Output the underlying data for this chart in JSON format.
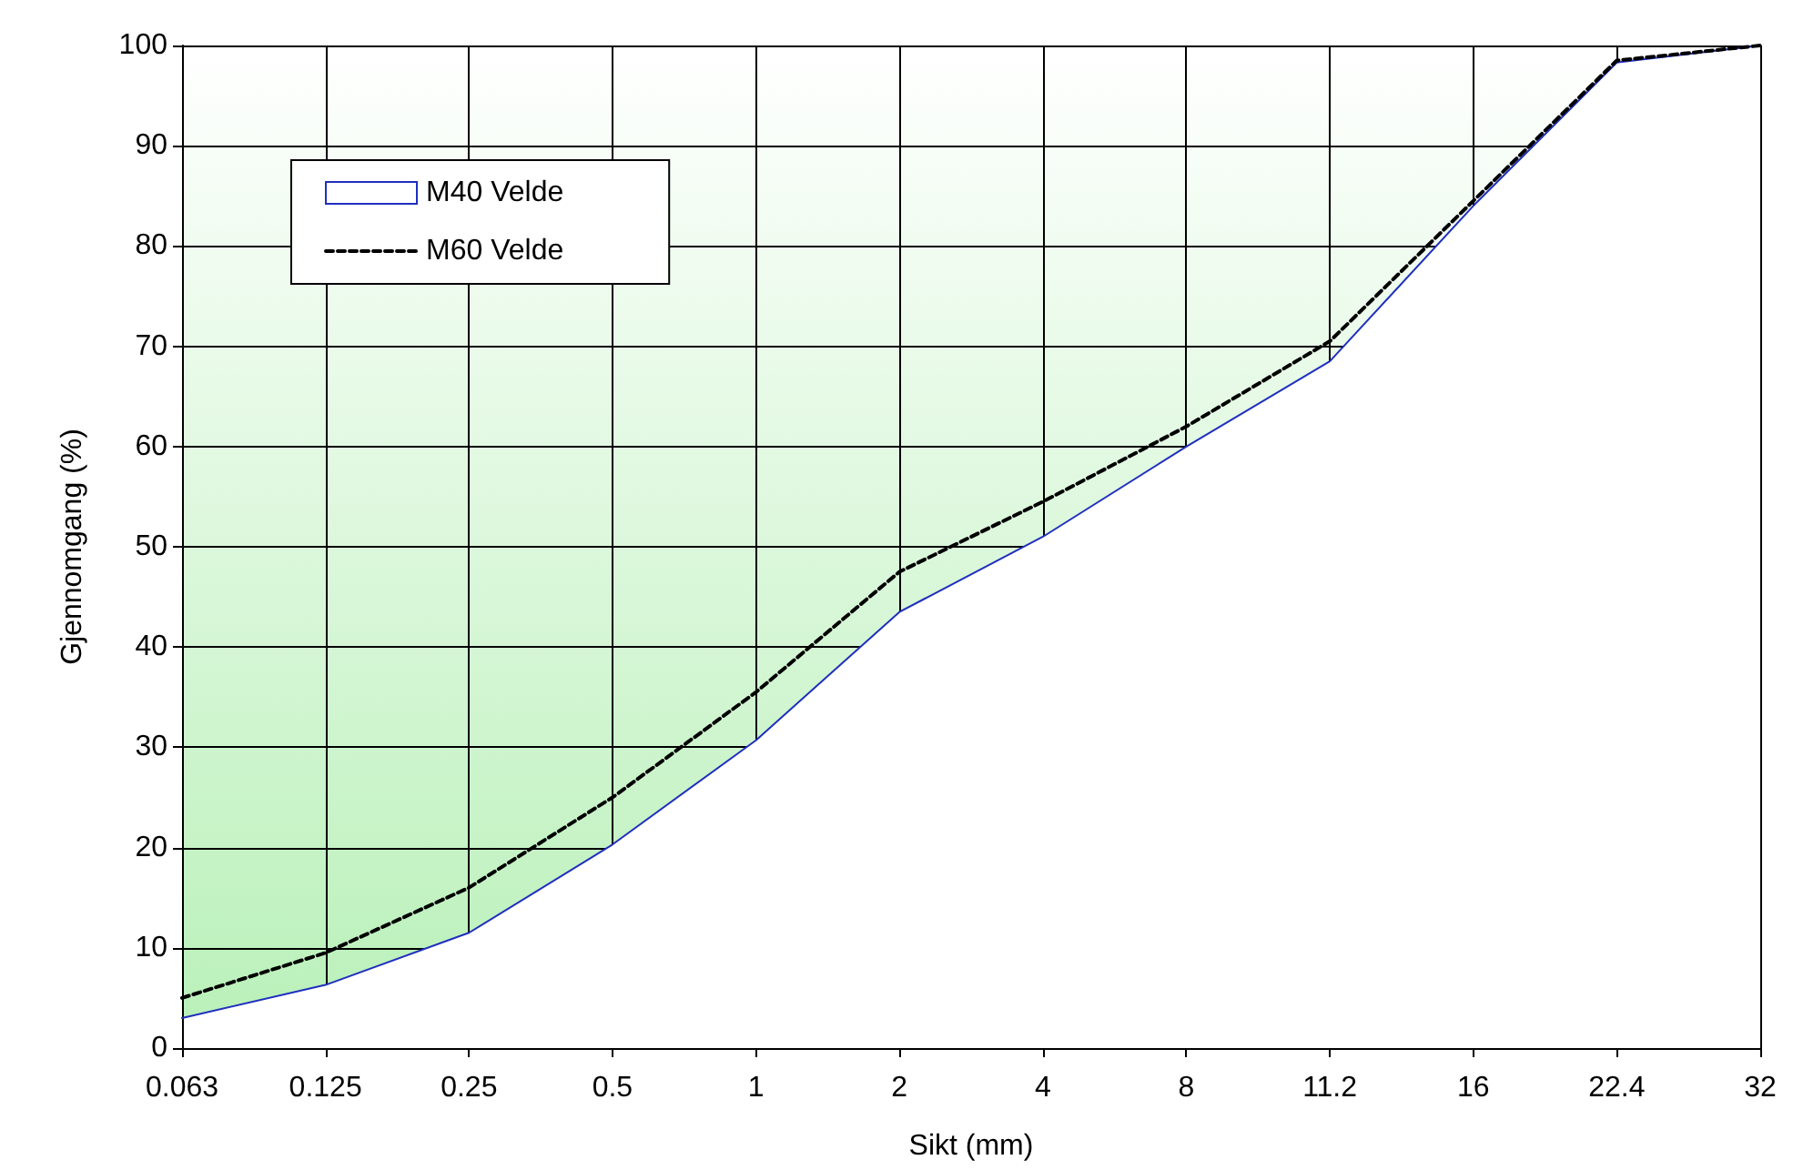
{
  "chart_data": {
    "type": "line",
    "xlabel": "Sikt (mm)",
    "ylabel": "Gjennomgang (%)",
    "categories": [
      "0.063",
      "0.125",
      "0.25",
      "0.5",
      "1",
      "2",
      "4",
      "8",
      "11.2",
      "16",
      "22.4",
      "32"
    ],
    "series": [
      {
        "name": "M40 Velde",
        "type": "area",
        "color": "#1f2fbf",
        "line_style": "solid",
        "values": [
          3,
          6.3,
          11.5,
          20.3,
          30.7,
          43.5,
          51,
          60,
          68.5,
          84,
          98.3,
          100
        ]
      },
      {
        "name": "M60 Velde",
        "color": "#000000",
        "line_style": "dashed",
        "values": [
          5,
          9.5,
          16,
          25,
          35.5,
          47.5,
          54.5,
          62,
          70.5,
          84.5,
          98.5,
          100
        ]
      }
    ],
    "ylim": [
      0,
      100
    ],
    "yticks": [
      0,
      10,
      20,
      30,
      40,
      50,
      60,
      70,
      80,
      90,
      100
    ],
    "grid": true,
    "legend": "top left",
    "marker": "none"
  }
}
